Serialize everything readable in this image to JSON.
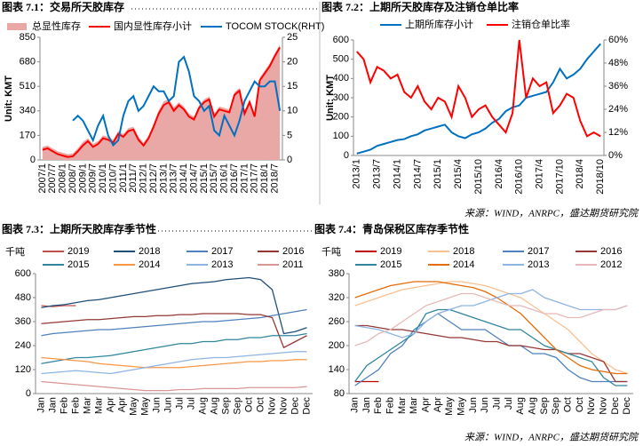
{
  "chart_data": [
    {
      "type": "line",
      "title": "图表 7.1：交易所天胶库存",
      "ylabel": "Unit: KMT",
      "categories": [
        "2007/1",
        null,
        "2007/7",
        null,
        "2008/1",
        null,
        "2008/7",
        null,
        "2009/1",
        null,
        "2009/7",
        null,
        "2010/1",
        null,
        "2010/7",
        null,
        "2011/1",
        null,
        "2011/7",
        null,
        "2012/1",
        null,
        "2012/7",
        null,
        "2013/1",
        null,
        "2013/7",
        null,
        "2014/1",
        null,
        "2014/7",
        null,
        "2015/1",
        null,
        "2015/7",
        null,
        "2016/1",
        null,
        "2016/7",
        null,
        "2017/1",
        null,
        "2017/7",
        null,
        "2018/1",
        null,
        "2018/7",
        null
      ],
      "series": [
        {
          "name": "总显性库存",
          "style": "area",
          "color": "#e9a8a6",
          "values": [
            90,
            100,
            80,
            60,
            50,
            40,
            45,
            80,
            125,
            150,
            110,
            130,
            170,
            160,
            140,
            200,
            180,
            220,
            230,
            160,
            120,
            170,
            250,
            345,
            405,
            425,
            365,
            400,
            370,
            320,
            300,
            380,
            420,
            440,
            320,
            370,
            360,
            350,
            470,
            500,
            340,
            420,
            320,
            570,
            620,
            670,
            740,
            800
          ]
        },
        {
          "name": "国内显性库存小计",
          "color": "#ff0000",
          "values": [
            70,
            80,
            60,
            40,
            30,
            20,
            25,
            60,
            100,
            130,
            90,
            110,
            150,
            140,
            120,
            180,
            160,
            200,
            210,
            140,
            100,
            150,
            230,
            320,
            380,
            400,
            340,
            380,
            350,
            300,
            280,
            360,
            400,
            420,
            300,
            350,
            340,
            330,
            450,
            480,
            320,
            400,
            300,
            550,
            600,
            650,
            720,
            780
          ]
        },
        {
          "name": "TOCOM STOCK(RHT)",
          "color": "#0070c0",
          "axis": "y2",
          "values": [
            null,
            null,
            null,
            null,
            null,
            null,
            8,
            9,
            8,
            6,
            4,
            7,
            9,
            5,
            3,
            4,
            9,
            12,
            13,
            10,
            11,
            13,
            15,
            14,
            14,
            12,
            13,
            20,
            21,
            18,
            13,
            12,
            10,
            11,
            6,
            5,
            9,
            7,
            5,
            8,
            12,
            14,
            16,
            15,
            15,
            16,
            16,
            10
          ]
        }
      ],
      "ylim": [
        0,
        850
      ],
      "yticks": [
        0,
        170,
        340,
        510,
        680,
        850
      ],
      "y2lim": [
        0,
        25
      ],
      "y2ticks": [
        0,
        5,
        10,
        15,
        20,
        25
      ],
      "grid": false
    },
    {
      "type": "line",
      "title": "图表 7.2：上期所天胶库存及注销仓单比率",
      "ylabel": "Unit: KMT",
      "categories": [
        "2013/1",
        null,
        null,
        "2013/7",
        null,
        null,
        "2014/1",
        null,
        null,
        "2014/7",
        null,
        null,
        "2015/1",
        null,
        null,
        "2015/4",
        null,
        null,
        "2015/10",
        null,
        null,
        "2016/4",
        null,
        null,
        "2016/10",
        null,
        null,
        "2017/4",
        null,
        null,
        "2017/10",
        null,
        null,
        "2018/4",
        null,
        null,
        "2018/10"
      ],
      "series": [
        {
          "name": "上期所库存小计",
          "color": "#0070c0",
          "values": [
            10,
            20,
            30,
            50,
            60,
            70,
            80,
            85,
            100,
            110,
            130,
            140,
            150,
            160,
            120,
            100,
            90,
            110,
            120,
            140,
            170,
            190,
            230,
            250,
            260,
            300,
            310,
            320,
            330,
            380,
            450,
            400,
            420,
            450,
            500,
            540,
            580
          ]
        },
        {
          "name": "注销仓单比率",
          "color": "#ff0000",
          "axis": "y2",
          "values": [
            54,
            50,
            38,
            46,
            44,
            40,
            42,
            33,
            30,
            36,
            28,
            24,
            30,
            28,
            20,
            36,
            30,
            20,
            24,
            26,
            20,
            16,
            12,
            22,
            60,
            30,
            40,
            36,
            38,
            22,
            26,
            32,
            30,
            18,
            10,
            12,
            10
          ]
        }
      ],
      "ylim": [
        0,
        600
      ],
      "yticks": [
        0,
        100,
        200,
        300,
        400,
        500,
        600
      ],
      "y2lim": [
        0,
        60
      ],
      "y2ticks": [
        {
          "value": 0,
          "label": "0%"
        },
        {
          "value": 12,
          "label": "12%"
        },
        {
          "value": 24,
          "label": "24%"
        },
        {
          "value": 36,
          "label": "36%"
        },
        {
          "value": 48,
          "label": "48%"
        },
        {
          "value": 60,
          "label": "60%"
        }
      ],
      "grid": false,
      "source": "来源：WIND，ANRPC，盛达期货研究院"
    },
    {
      "type": "line",
      "title": "图表 7.3：上期所天胶库存季节性",
      "unit": "千吨",
      "categories": [
        "Jan",
        "Jan",
        "Feb",
        "Feb",
        "Mar",
        "Mar",
        "Apr",
        "Apr",
        "May",
        "May",
        "Jun",
        "Jun",
        "Jul",
        "Jul",
        "Aug",
        "Aug",
        "Sep",
        "Sep",
        "Oct",
        "Oct",
        "Nov",
        "Nov",
        "Dec",
        "Dec"
      ],
      "series": [
        {
          "name": "2019",
          "color": "#c0504d",
          "values": [
            440,
            435,
            440,
            440,
            null,
            null,
            null,
            null,
            null,
            null,
            null,
            null,
            null,
            null,
            null,
            null,
            null,
            null,
            null,
            null,
            null,
            null,
            null,
            null
          ]
        },
        {
          "name": "2018",
          "color": "#1f4e79",
          "values": [
            430,
            440,
            445,
            455,
            465,
            470,
            480,
            490,
            500,
            510,
            520,
            530,
            540,
            550,
            555,
            560,
            570,
            575,
            580,
            570,
            520,
            300,
            310,
            330
          ]
        },
        {
          "name": "2017",
          "color": "#4f81bd",
          "values": [
            290,
            300,
            305,
            310,
            315,
            320,
            320,
            325,
            330,
            335,
            340,
            345,
            350,
            355,
            360,
            360,
            365,
            370,
            375,
            380,
            390,
            400,
            410,
            420
          ]
        },
        {
          "name": "2016",
          "color": "#953735",
          "values": [
            350,
            355,
            360,
            365,
            370,
            370,
            375,
            380,
            385,
            385,
            390,
            390,
            395,
            395,
            400,
            400,
            400,
            400,
            395,
            395,
            380,
            230,
            260,
            290
          ]
        },
        {
          "name": "2015",
          "color": "#31859c",
          "values": [
            150,
            160,
            170,
            180,
            180,
            185,
            190,
            200,
            210,
            220,
            230,
            240,
            250,
            250,
            260,
            260,
            270,
            270,
            280,
            280,
            290,
            290,
            290,
            300
          ]
        },
        {
          "name": "2014",
          "color": "#f79646",
          "values": [
            180,
            175,
            170,
            165,
            160,
            150,
            145,
            140,
            135,
            130,
            130,
            130,
            130,
            135,
            140,
            145,
            150,
            155,
            160,
            160,
            165,
            165,
            170,
            170
          ]
        },
        {
          "name": "2013",
          "color": "#8eb4e3",
          "values": [
            100,
            105,
            110,
            115,
            110,
            105,
            100,
            110,
            120,
            130,
            140,
            150,
            160,
            170,
            175,
            180,
            180,
            185,
            190,
            195,
            200,
            205,
            210,
            210
          ]
        },
        {
          "name": "2011",
          "color": "#d99694",
          "values": [
            60,
            55,
            50,
            45,
            40,
            35,
            30,
            25,
            20,
            15,
            15,
            15,
            20,
            20,
            25,
            25,
            25,
            25,
            30,
            30,
            30,
            30,
            30,
            35
          ]
        }
      ],
      "ylim": [
        0,
        600
      ],
      "yticks": [
        0,
        120,
        240,
        360,
        480,
        600
      ],
      "grid": false
    },
    {
      "type": "line",
      "title": "图表 7.4：青岛保税区库存季节性",
      "unit": "千吨",
      "categories": [
        "Jan",
        "Jan",
        "Feb",
        "Feb",
        "Mar",
        "Mar",
        "Apr",
        "Apr",
        "May",
        "May",
        "Jun",
        "Jun",
        "Jul",
        "Jul",
        "Aug",
        "Aug",
        "Sep",
        "Sep",
        "Oct",
        "Oct",
        "Nov",
        "Nov",
        "Dec",
        "Dec"
      ],
      "series": [
        {
          "name": "2019",
          "color": "#c00000",
          "values": [
            110,
            110,
            110,
            null,
            null,
            null,
            null,
            null,
            null,
            null,
            null,
            null,
            null,
            null,
            null,
            null,
            null,
            null,
            null,
            null,
            null,
            null,
            null,
            null
          ]
        },
        {
          "name": "2018",
          "color": "#fac090",
          "values": [
            300,
            310,
            320,
            330,
            340,
            345,
            350,
            355,
            360,
            360,
            355,
            350,
            340,
            330,
            320,
            300,
            280,
            260,
            240,
            210,
            180,
            160,
            140,
            130
          ]
        },
        {
          "name": "2017",
          "color": "#4f81bd",
          "values": [
            100,
            120,
            140,
            180,
            200,
            240,
            260,
            280,
            260,
            240,
            240,
            240,
            220,
            200,
            200,
            180,
            180,
            170,
            140,
            120,
            110,
            110,
            110,
            110
          ]
        },
        {
          "name": "2016",
          "color": "#953735",
          "values": [
            250,
            250,
            245,
            240,
            240,
            235,
            230,
            225,
            220,
            220,
            215,
            210,
            210,
            200,
            200,
            195,
            190,
            190,
            180,
            180,
            170,
            160,
            110,
            110
          ]
        },
        {
          "name": "2015",
          "color": "#31859c",
          "values": [
            110,
            150,
            170,
            190,
            210,
            230,
            280,
            290,
            290,
            280,
            270,
            260,
            250,
            240,
            240,
            220,
            200,
            190,
            180,
            170,
            160,
            120,
            100,
            100
          ]
        },
        {
          "name": "2014",
          "color": "#e46c0a",
          "values": [
            320,
            330,
            340,
            350,
            355,
            360,
            360,
            360,
            355,
            350,
            345,
            335,
            320,
            300,
            280,
            250,
            220,
            190,
            170,
            150,
            140,
            135,
            130,
            130
          ]
        },
        {
          "name": "2013",
          "color": "#8eb4e3",
          "values": [
            250,
            245,
            240,
            230,
            220,
            230,
            260,
            280,
            290,
            300,
            300,
            310,
            320,
            330,
            330,
            340,
            320,
            310,
            300,
            290,
            290,
            290,
            290,
            300
          ]
        },
        {
          "name": "2012",
          "color": "#e6b9b8",
          "values": [
            200,
            210,
            230,
            240,
            260,
            280,
            300,
            310,
            320,
            330,
            330,
            320,
            310,
            300,
            300,
            290,
            280,
            280,
            270,
            270,
            280,
            290,
            290,
            300
          ]
        }
      ],
      "ylim": [
        80,
        380
      ],
      "yticks": [
        80,
        140,
        200,
        260,
        320,
        380
      ],
      "grid": false,
      "source": "来源：WIND，ANRPC，盛达期货研究院"
    }
  ]
}
